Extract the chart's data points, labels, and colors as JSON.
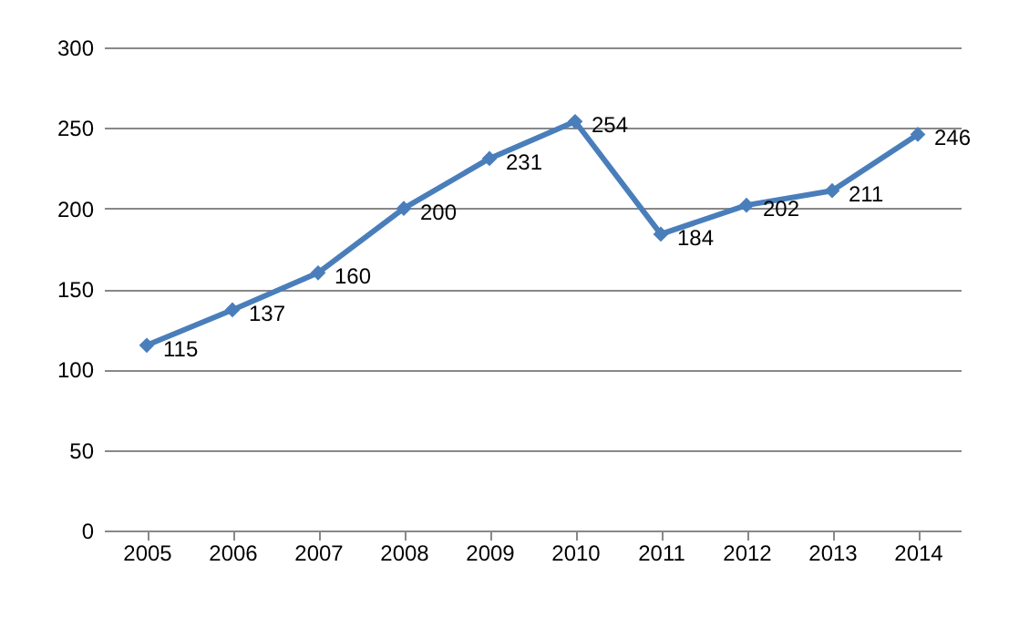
{
  "chart_data": {
    "type": "line",
    "categories": [
      "2005",
      "2006",
      "2007",
      "2008",
      "2009",
      "2010",
      "2011",
      "2012",
      "2013",
      "2014"
    ],
    "series": [
      {
        "color": "#4a7ebb",
        "values": [
          115,
          137,
          160,
          200,
          231,
          254,
          184,
          202,
          211,
          246
        ]
      }
    ],
    "ylim": [
      0,
      300
    ],
    "yticks": [
      0,
      50,
      100,
      150,
      200,
      250,
      300
    ],
    "grid": "y",
    "marker": "diamond",
    "line_style": "solid",
    "data_labels": true,
    "legend": false
  }
}
